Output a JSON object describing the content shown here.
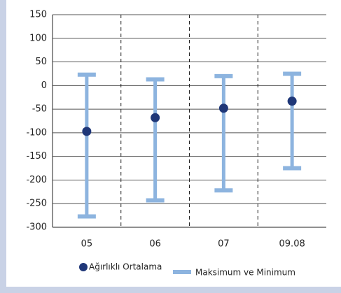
{
  "chart_data": {
    "type": "range",
    "categories": [
      "05",
      "06",
      "07",
      "09.08"
    ],
    "series": [
      {
        "name": "Ağırlıklı Ortalama",
        "color": "#1f3778",
        "values": [
          -97,
          -68,
          -48,
          -33
        ]
      },
      {
        "name": "Maksimum ve Minimum",
        "color": "#8db4df",
        "high": [
          23,
          13,
          20,
          25
        ],
        "low": [
          -277,
          -243,
          -222,
          -175
        ]
      }
    ],
    "ylim": [
      -300,
      150
    ],
    "yticks": [
      -300,
      -250,
      -200,
      -150,
      -100,
      -50,
      0,
      50,
      100,
      150
    ],
    "grid": true
  }
}
